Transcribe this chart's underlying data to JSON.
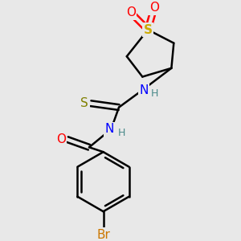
{
  "bg_color": "#e8e8e8",
  "atom_colors": {
    "C": "#000000",
    "H": "#4a8a8a",
    "N": "#0000FF",
    "O": "#FF0000",
    "S_ring": "#ccaa00",
    "S_thio": "#808000",
    "Br": "#cc7700"
  },
  "bond_color": "#000000",
  "bond_width": 1.8,
  "figsize": [
    3.0,
    3.0
  ],
  "dpi": 100
}
